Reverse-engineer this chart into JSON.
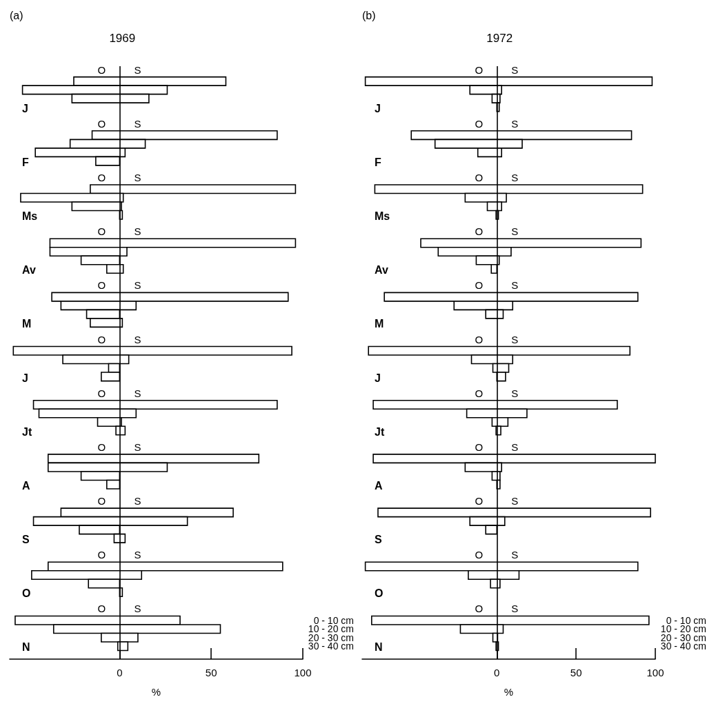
{
  "chart_data": [
    {
      "type": "bar",
      "orientation": "horizontal",
      "title": "1969",
      "xlabel": "%",
      "legend": "bottom right",
      "categories": [
        "J",
        "F",
        "Ms",
        "Av",
        "M",
        "J",
        "Jt",
        "A",
        "S",
        "O",
        "N"
      ],
      "xlim": [
        -60,
        100
      ],
      "xticks": [
        0,
        50,
        100
      ],
      "ref_lines": [
        {
          "axis": "x",
          "value": 0,
          "color": "#000000"
        }
      ],
      "annotations": [
        "(a)",
        "O",
        "S",
        "O",
        "S",
        "O",
        "S",
        "O",
        "S",
        "O",
        "S",
        "O",
        "S",
        "O",
        "S",
        "O",
        "S",
        "O",
        "S",
        "O",
        "S",
        "O",
        "S"
      ],
      "series": [
        {
          "name": "0 - 10 cm",
          "color": "#ffffff",
          "base": [
            -25,
            -15,
            -16,
            -38,
            -37,
            -58,
            -47,
            -39,
            -32,
            -39,
            -57
          ],
          "values": [
            83,
            101,
            112,
            134,
            129,
            152,
            133,
            115,
            94,
            128,
            90
          ]
        },
        {
          "name": "10 - 20 cm",
          "color": "#ffffff",
          "base": [
            -53,
            -27,
            -54,
            -38,
            -32,
            -31,
            -44,
            -39,
            -47,
            -48,
            -36
          ],
          "values": [
            79,
            41,
            56,
            42,
            41,
            36,
            53,
            65,
            84,
            60,
            91
          ]
        },
        {
          "name": "20 - 30 cm",
          "color": "#ffffff",
          "base": [
            -26,
            -46,
            -26,
            -21,
            -18,
            -6,
            -12,
            -21,
            -22,
            -17,
            -10
          ],
          "values": [
            42,
            49,
            27,
            21,
            18,
            6,
            13,
            21,
            22,
            17,
            20
          ]
        },
        {
          "name": "30 - 40 cm",
          "color": "#ffffff",
          "base": [
            null,
            -13,
            0,
            -7,
            -16,
            -10,
            -2,
            -7,
            -3,
            0,
            -1
          ],
          "values": [
            null,
            13,
            1.5,
            9,
            17.5,
            10,
            5,
            7,
            6,
            1.5,
            5.5
          ]
        }
      ]
    },
    {
      "type": "bar",
      "orientation": "horizontal",
      "title": "1972",
      "xlabel": "%",
      "legend": "bottom right",
      "categories": [
        "J",
        "F",
        "Ms",
        "Av",
        "M",
        "J",
        "Jt",
        "A",
        "S",
        "O",
        "N"
      ],
      "xlim": [
        -85,
        100
      ],
      "xticks": [
        0,
        50,
        100
      ],
      "ref_lines": [
        {
          "axis": "x",
          "value": 0,
          "color": "#000000"
        }
      ],
      "annotations": [
        "(b)",
        "O",
        "S",
        "O",
        "S",
        "O",
        "S",
        "O",
        "S",
        "O",
        "S",
        "O",
        "S",
        "O",
        "S",
        "O",
        "S",
        "O",
        "S",
        "O",
        "S",
        "O",
        "S"
      ],
      "series": [
        {
          "name": "0 - 10 cm",
          "color": "#ffffff",
          "base": [
            -83,
            -54,
            -77,
            -48,
            -71,
            -81,
            -78,
            -78,
            -75,
            -83,
            -79
          ],
          "values": [
            181,
            139,
            169,
            139,
            160,
            165,
            154,
            178,
            172,
            172,
            175
          ]
        },
        {
          "name": "10 - 20 cm",
          "color": "#ffffff",
          "base": [
            -17,
            -39,
            -20,
            -37,
            -27,
            -16,
            -19,
            -20,
            -17,
            -18,
            -23
          ],
          "values": [
            20,
            55,
            26,
            46,
            37,
            26,
            38,
            23,
            22,
            32,
            27
          ]
        },
        {
          "name": "20 - 30 cm",
          "color": "#ffffff",
          "base": [
            -3,
            -12,
            -6,
            -13,
            -7,
            -2.5,
            -3,
            -3,
            -7,
            -4,
            -2.5
          ],
          "values": [
            5,
            15,
            9,
            14.5,
            11,
            10,
            10,
            5,
            7,
            6,
            3
          ]
        },
        {
          "name": "30 - 40 cm",
          "color": "#ffffff",
          "base": [
            0,
            null,
            -0.5,
            -3.5,
            null,
            0,
            -0.5,
            0,
            null,
            null,
            -0.5
          ],
          "values": [
            1.5,
            null,
            1.5,
            3.5,
            null,
            5.5,
            3,
            2,
            null,
            null,
            1.5
          ]
        }
      ]
    }
  ]
}
